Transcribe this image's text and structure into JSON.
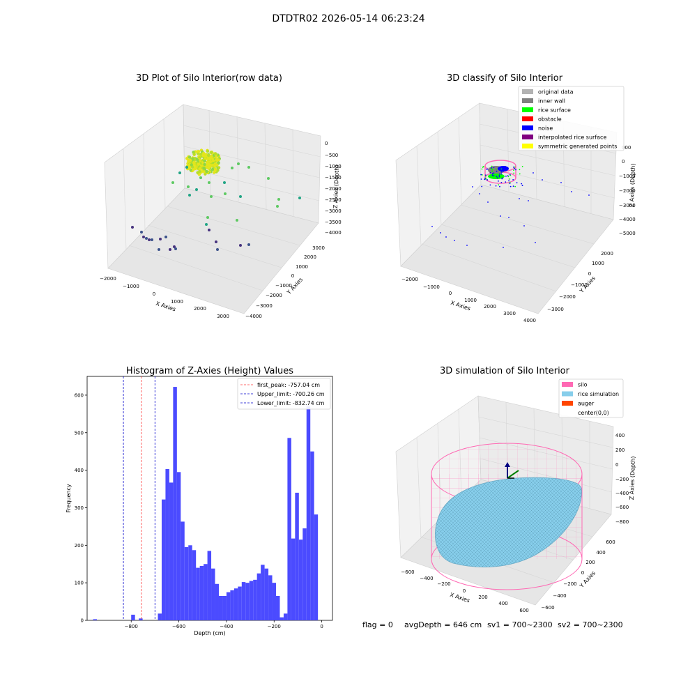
{
  "figure": {
    "suptitle": "DTDTR02 2026-05-14 06:23:24",
    "footer": {
      "flag": "flag = 0",
      "avg_depth": "avgDepth = 646 cm",
      "sv1": "sv1 = 700~2300",
      "sv2": "sv2 = 700~2300"
    }
  },
  "colors": {
    "hist_bar": "#4b4bff",
    "peak_line": "#ff3b3b",
    "limit_line": "#0000cc",
    "original": "#b3b3b3",
    "inner_wall": "#808080",
    "rice_surface": "#00ff00",
    "obstacle": "#ff0000",
    "noise": "#0000ff",
    "interpolated": "#800080",
    "symmetric": "#ffff00",
    "silo": "#ff69b4",
    "rice_sim": "#87ceeb",
    "auger": "#ff4500"
  },
  "chart_data": [
    {
      "type": "scatter",
      "projection": "3d",
      "title": "3D Plot of Silo Interior(row data)",
      "xlabel": "X Axies",
      "ylabel": "Y Axies",
      "zlabel": "Z Axies (Depth)",
      "xticks": [
        "−2000",
        "−1000",
        "0",
        "1000",
        "2000",
        "3000"
      ],
      "yticks": [
        "−4000",
        "−3000",
        "−2000",
        "−1000",
        "0",
        "1000",
        "2000",
        "3000"
      ],
      "zticks": [
        "0",
        "−500",
        "−1000",
        "−1500",
        "−2000",
        "−2500",
        "−3000",
        "−3500",
        "−4000"
      ],
      "colormap": "viridis",
      "description_points": "dense yellow cluster near top center; scattered teal/green points mid-depth; purple points at bottom"
    },
    {
      "type": "scatter",
      "projection": "3d",
      "title": "3D classify of Silo Interior",
      "xlabel": "X Axies",
      "ylabel": "Y Axies",
      "zlabel": "Z Axies (Depth)",
      "xticks": [
        "−2000",
        "−1000",
        "0",
        "1000",
        "2000",
        "3000",
        "4000"
      ],
      "yticks": [
        "−3000",
        "−2000",
        "−1000",
        "0",
        "1000",
        "2000"
      ],
      "zticks": [
        "000",
        "0",
        "−1000",
        "−2000",
        "−3000",
        "−4000",
        "−5000"
      ],
      "legend_position": "top-right",
      "legend": [
        {
          "label": "original data",
          "color": "#b3b3b3"
        },
        {
          "label": "inner wall",
          "color": "#808080"
        },
        {
          "label": "rice surface",
          "color": "#00ff00"
        },
        {
          "label": "obstacle",
          "color": "#ff0000"
        },
        {
          "label": "noise",
          "color": "#0000ff"
        },
        {
          "label": "interpolated rice surface",
          "color": "#800080"
        },
        {
          "label": "symmetric generated points",
          "color": "#ffff00"
        }
      ]
    },
    {
      "type": "bar",
      "title": "Histogram of Z-Axies (Height) Values",
      "xlabel": "Depth (cm)",
      "ylabel": "Frequency",
      "xlim": [
        -985,
        45
      ],
      "ylim": [
        0,
        650
      ],
      "xticks": [
        -800,
        -600,
        -400,
        -200,
        0
      ],
      "xtick_labels": [
        "−800",
        "−600",
        "−400",
        "−200",
        "0"
      ],
      "yticks": [
        0,
        100,
        200,
        300,
        400,
        500,
        600
      ],
      "bin_start": -960,
      "bin_width": 16,
      "values": [
        3,
        0,
        0,
        0,
        0,
        0,
        0,
        0,
        0,
        0,
        15,
        0,
        5,
        0,
        0,
        0,
        0,
        18,
        322,
        403,
        367,
        622,
        395,
        263,
        195,
        200,
        187,
        140,
        145,
        150,
        185,
        138,
        97,
        65,
        65,
        75,
        80,
        85,
        90,
        102,
        100,
        105,
        108,
        125,
        148,
        138,
        120,
        100,
        65,
        8,
        18,
        486,
        218,
        340,
        215,
        245,
        570,
        450,
        282
      ],
      "vlines": [
        {
          "x": -757.04,
          "style": "dashed",
          "color": "#ff3b3b",
          "label": "first_peak: -757.04 cm"
        },
        {
          "x": -700.26,
          "style": "dashed",
          "color": "#0000cc",
          "label": "Upper_limit: -700.26 cm"
        },
        {
          "x": -832.74,
          "style": "dashed",
          "color": "#0000cc",
          "label": "Lower_limit: -832.74 cm"
        }
      ],
      "legend_position": "top-right"
    },
    {
      "type": "surface",
      "projection": "3d",
      "title": "3D simulation of Silo Interior",
      "xlabel": "X Axies",
      "ylabel": "Y Axies",
      "zlabel": "Z Axies (Depth)",
      "xticks": [
        "−600",
        "−400",
        "−200",
        "0",
        "200",
        "400",
        "600"
      ],
      "yticks": [
        "−600",
        "−400",
        "−200",
        "0",
        "200",
        "400",
        "600"
      ],
      "zticks": [
        "400",
        "200",
        "0",
        "−200",
        "−400",
        "−600",
        "−800"
      ],
      "legend_position": "top-right",
      "legend": [
        {
          "label": "silo",
          "color": "#ff69b4"
        },
        {
          "label": "rice simulation",
          "color": "#87ceeb"
        },
        {
          "label": "auger",
          "color": "#ff4500"
        },
        {
          "label": "center(0,0)",
          "color": ""
        }
      ]
    }
  ]
}
